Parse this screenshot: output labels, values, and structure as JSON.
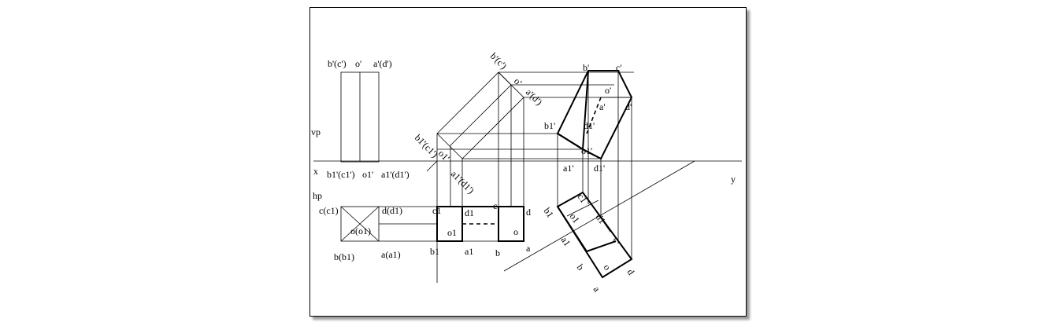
{
  "labels": {
    "x": "x",
    "y": "y",
    "vp": "vp",
    "hp": "hp",
    "front_left_top_b": "b'(c')",
    "front_left_top_o": "o'",
    "front_left_top_a": "a'(d')",
    "front_left_bottom_b": "b1'(c1')",
    "front_left_bottom_o": "o1'",
    "front_left_bottom_a": "a1'(d1')",
    "top_left_c": "c(c1)",
    "top_left_d": "d(d1)",
    "top_left_o": "o(o1)",
    "top_left_b": "b(b1)",
    "top_left_a": "a(a1)",
    "mid_b": "b'(c')",
    "mid_o": "o'",
    "mid_a": "a'(d')",
    "mid_b1": "b1'(c1')",
    "mid_o1": "o1'",
    "mid_a1": "a1'(d1')",
    "mid_top_c1": "c1",
    "mid_top_d1": "d1",
    "mid_top_o1": "o1",
    "mid_top_b1": "b1",
    "mid_top_a1": "a1",
    "mid_top_c": "c",
    "mid_top_d": "d",
    "mid_top_o": "o",
    "mid_top_b": "b",
    "mid_top_a": "a",
    "right_b": "b'",
    "right_c": "c'",
    "right_o": "o'",
    "right_a": "a'",
    "right_d": "d'",
    "right_b1": "b1'",
    "right_d1_top": "d1'",
    "right_o1": "o1'",
    "right_a1": "a1'",
    "right_d1": "d1'",
    "aux_c1": "c1",
    "aux_b1": "b1",
    "aux_o1": "o1",
    "aux_d1": "d1",
    "aux_a1": "a1",
    "aux_c": "c",
    "aux_b": "b",
    "aux_o": "o",
    "aux_d": "d",
    "aux_a": "a"
  }
}
